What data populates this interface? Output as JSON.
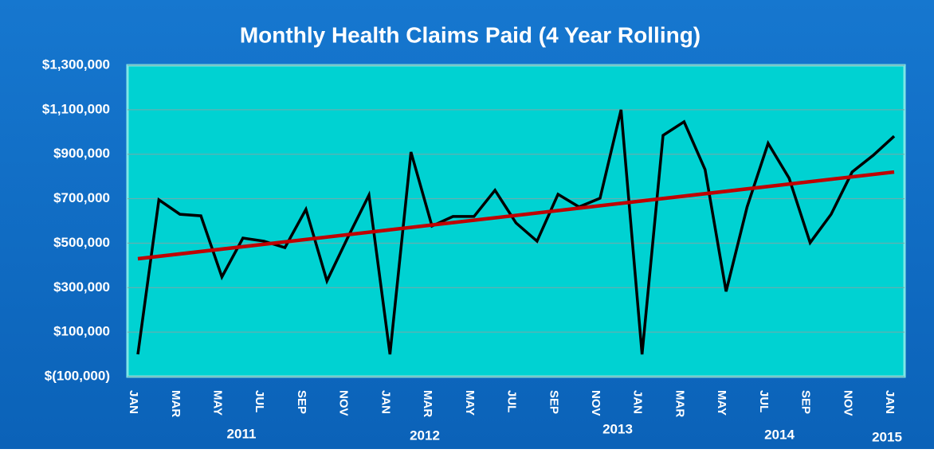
{
  "chart_data": {
    "type": "line",
    "title": "Monthly Health Claims Paid (4 Year Rolling)",
    "categories": [
      "JAN",
      null,
      "MAR",
      null,
      "MAY",
      null,
      "JUL",
      null,
      "SEP",
      null,
      "NOV",
      null,
      "JAN",
      null,
      "MAR",
      null,
      "MAY",
      null,
      "JUL",
      null,
      "SEP",
      null,
      "NOV",
      null,
      "JAN",
      null,
      "MAR",
      null,
      "MAY",
      null,
      "JUL",
      null,
      "SEP",
      null,
      "NOV",
      null,
      "JAN"
    ],
    "x_groups": [
      "2011",
      "2012",
      "2013",
      "2014",
      "2015"
    ],
    "series": [
      {
        "name": "Claims Paid",
        "color": "#000000",
        "values": [
          0,
          695000,
          630000,
          623000,
          348000,
          523000,
          509000,
          480000,
          652000,
          330000,
          527000,
          716000,
          0,
          910000,
          577000,
          620000,
          620000,
          738000,
          591000,
          509000,
          720000,
          663000,
          702000,
          1100000,
          0,
          985000,
          1046000,
          831000,
          283000,
          663000,
          949000,
          792000,
          502000,
          630000,
          820000,
          895000,
          981000
        ]
      }
    ],
    "trendline": {
      "start": 430000,
      "end": 820000,
      "color": "#c00000"
    },
    "ylim": [
      -100000,
      1300000
    ],
    "yticks": [
      {
        "value": -100000,
        "label": "$(100,000)"
      },
      {
        "value": 100000,
        "label": "$100,000"
      },
      {
        "value": 300000,
        "label": "$300,000"
      },
      {
        "value": 500000,
        "label": "$500,000"
      },
      {
        "value": 700000,
        "label": "$700,000"
      },
      {
        "value": 900000,
        "label": "$900,000"
      },
      {
        "value": 1100000,
        "label": "$1,100,000"
      },
      {
        "value": 1300000,
        "label": "$1,300,000"
      }
    ],
    "grid": true
  }
}
